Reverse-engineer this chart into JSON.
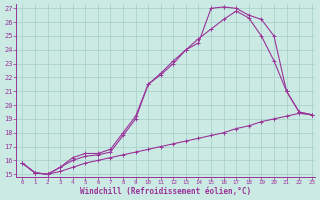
{
  "xlabel": "Windchill (Refroidissement éolien,°C)",
  "bg_color": "#cceae4",
  "grid_color": "#aad4cc",
  "line_color": "#993399",
  "x_min": 0,
  "x_max": 23,
  "y_min": 15,
  "y_max": 27,
  "line1_x": [
    0,
    1,
    2,
    3,
    4,
    5,
    6,
    7,
    8,
    9,
    10,
    11,
    12,
    13,
    14,
    15,
    16,
    17,
    18,
    19,
    20,
    21,
    22,
    23
  ],
  "line1_y": [
    15.8,
    15.1,
    15.0,
    15.2,
    15.5,
    15.8,
    16.0,
    16.2,
    16.4,
    16.6,
    16.8,
    17.0,
    17.2,
    17.4,
    17.6,
    17.8,
    18.0,
    18.3,
    18.5,
    18.8,
    19.0,
    19.2,
    19.4,
    19.3
  ],
  "line2_x": [
    0,
    1,
    2,
    3,
    4,
    5,
    6,
    7,
    8,
    9,
    10,
    11,
    12,
    13,
    14,
    15,
    16,
    17,
    18,
    19,
    20,
    21,
    22,
    23
  ],
  "line2_y": [
    15.8,
    15.1,
    15.0,
    15.5,
    16.0,
    16.3,
    16.4,
    16.6,
    17.8,
    19.0,
    21.5,
    22.2,
    23.0,
    24.0,
    24.5,
    27.0,
    27.1,
    27.0,
    26.5,
    26.2,
    25.0,
    21.0,
    19.5,
    19.3
  ],
  "line3_x": [
    0,
    1,
    2,
    3,
    4,
    5,
    6,
    7,
    8,
    9,
    10,
    11,
    12,
    13,
    14,
    15,
    16,
    17,
    18,
    19,
    20,
    21,
    22,
    23
  ],
  "line3_y": [
    15.8,
    15.1,
    15.0,
    15.5,
    16.2,
    16.5,
    16.5,
    16.8,
    18.0,
    19.2,
    21.5,
    22.3,
    23.2,
    24.0,
    24.8,
    25.5,
    26.2,
    26.8,
    26.3,
    25.0,
    23.2,
    21.0,
    19.5,
    19.3
  ]
}
